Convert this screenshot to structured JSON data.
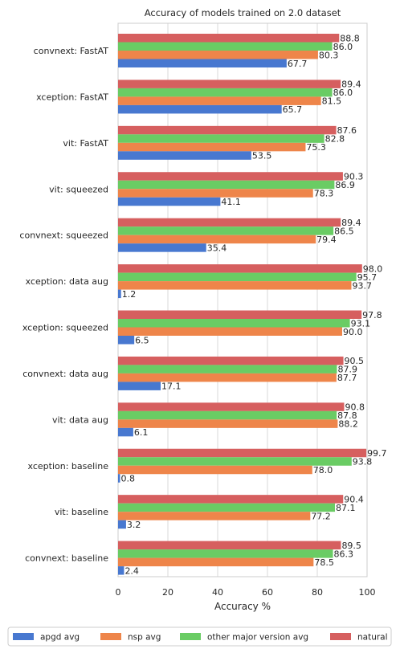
{
  "chart_data": {
    "type": "bar",
    "orientation": "horizontal",
    "title": "Accuracy of models trained on 2.0 dataset",
    "xlabel": "Accuracy %",
    "ylabel": "",
    "xlim": [
      0,
      100
    ],
    "xticks": [
      0,
      20,
      40,
      60,
      80,
      100
    ],
    "grid": true,
    "legend_position": "bottom",
    "categories": [
      "convnext: FastAT",
      "xception: FastAT",
      "vit: FastAT",
      "vit: squeezed",
      "convnext: squeezed",
      "xception: data aug",
      "xception: squeezed",
      "convnext: data aug",
      "vit: data aug",
      "xception: baseline",
      "vit: baseline",
      "convnext: baseline"
    ],
    "series": [
      {
        "name": "apgd avg",
        "color": "#4878d0",
        "values": [
          67.7,
          65.7,
          53.5,
          41.1,
          35.4,
          1.2,
          6.5,
          17.1,
          6.1,
          0.8,
          3.2,
          2.4
        ]
      },
      {
        "name": "nsp avg",
        "color": "#ee854a",
        "values": [
          80.3,
          81.5,
          75.3,
          78.3,
          79.4,
          93.7,
          90.0,
          87.7,
          88.2,
          78.0,
          77.2,
          78.5
        ]
      },
      {
        "name": "other major version avg",
        "color": "#6acc64",
        "values": [
          86.0,
          86.0,
          82.8,
          86.9,
          86.5,
          95.7,
          93.1,
          87.9,
          87.8,
          93.8,
          87.1,
          86.3
        ]
      },
      {
        "name": "natural",
        "color": "#d65f5f",
        "values": [
          88.8,
          89.4,
          87.6,
          90.3,
          89.4,
          98.0,
          97.8,
          90.5,
          90.8,
          99.7,
          90.4,
          89.5
        ]
      }
    ]
  }
}
